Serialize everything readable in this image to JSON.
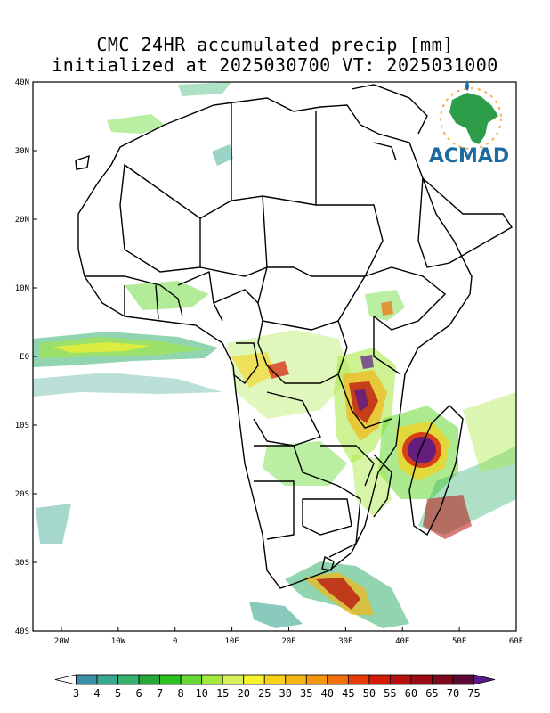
{
  "title": {
    "line1": "CMC 24HR accumulated precip [mm]",
    "line2": "initialized at 2025030700 VT: 2025031000"
  },
  "logo": {
    "text": "ACMAD",
    "icon": "africa-map-logo"
  },
  "axes": {
    "lat_labels": [
      "40N",
      "30N",
      "20N",
      "10N",
      "EQ",
      "10S",
      "20S",
      "30S",
      "40S"
    ],
    "lon_labels": [
      "20W",
      "10W",
      "0",
      "10E",
      "20E",
      "30E",
      "40E",
      "50E",
      "60E"
    ],
    "lon_range": [
      -25,
      60
    ],
    "lat_range": [
      -40,
      40
    ]
  },
  "colorbar": {
    "levels": [
      "3",
      "4",
      "5",
      "6",
      "7",
      "8",
      "10",
      "15",
      "20",
      "25",
      "30",
      "35",
      "40",
      "45",
      "50",
      "55",
      "60",
      "65",
      "70",
      "75"
    ],
    "colors": [
      "#ffffff",
      "#3c8fa8",
      "#3aa78f",
      "#35b26d",
      "#26a83a",
      "#2bc21d",
      "#66d933",
      "#a3e83c",
      "#d8f05a",
      "#f6f22e",
      "#f6d21d",
      "#f5b514",
      "#f3960f",
      "#f0700b",
      "#e63c08",
      "#d51a0a",
      "#b80f0f",
      "#9c0b14",
      "#7d0a1c",
      "#5c0a35",
      "#5a1a8a"
    ]
  }
}
